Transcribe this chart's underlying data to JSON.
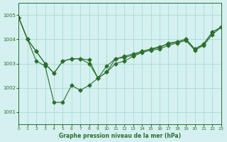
{
  "title": "Graphe pression niveau de la mer (hPa)",
  "background_color": "#d4f0f0",
  "grid_color": "#aaddcc",
  "line_color": "#2d6e2d",
  "xlim": [
    0,
    23
  ],
  "ylim": [
    1000.5,
    1005.5
  ],
  "yticks": [
    1001,
    1002,
    1003,
    1004,
    1005
  ],
  "xticks": [
    0,
    1,
    2,
    3,
    4,
    5,
    6,
    7,
    8,
    9,
    10,
    11,
    12,
    13,
    14,
    15,
    16,
    17,
    18,
    19,
    20,
    21,
    22,
    23
  ],
  "series": [
    [
      1004.9,
      1004.0,
      1003.1,
      1002.9,
      1001.4,
      1001.4,
      1002.1,
      1001.9,
      1002.1,
      1002.4,
      1002.9,
      1003.2,
      1003.3,
      1003.4,
      1003.5,
      1003.6,
      1003.7,
      1003.8,
      1003.9,
      1004.0,
      1003.6,
      1003.8,
      1004.3,
      1004.5
    ],
    [
      1004.9,
      1004.0,
      1003.5,
      1003.0,
      1002.6,
      1003.1,
      1003.2,
      1003.2,
      1003.15,
      1002.4,
      1002.65,
      1003.2,
      1003.25,
      1003.35,
      1003.5,
      1003.6,
      1003.65,
      1003.85,
      1003.9,
      1004.0,
      1003.6,
      1003.8,
      1004.3,
      1004.5
    ],
    [
      1004.9,
      1004.0,
      1003.5,
      1003.0,
      1002.6,
      1003.1,
      1003.2,
      1003.2,
      1003.0,
      1002.4,
      1002.65,
      1003.0,
      1003.1,
      1003.3,
      1003.45,
      1003.55,
      1003.6,
      1003.75,
      1003.85,
      1003.95,
      1003.55,
      1003.75,
      1004.2,
      1004.5
    ]
  ]
}
